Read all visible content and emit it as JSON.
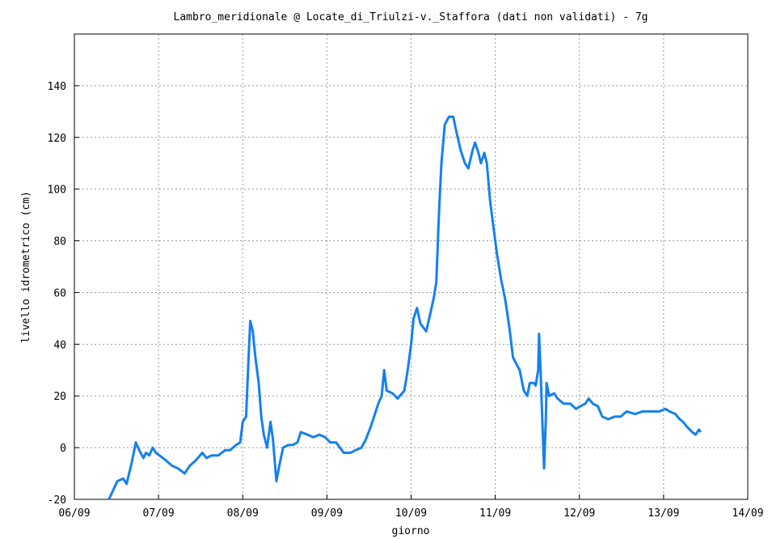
{
  "chart_data": {
    "type": "line",
    "title": "Lambro_meridionale @ Locate_di_Triulzi-v._Staffora (dati non validati) - 7g",
    "x_label": "giorno",
    "y_label": "livello idrometrico (cm)",
    "xlim": [
      0,
      8
    ],
    "xticks": [
      {
        "value": 0,
        "label": "06/09"
      },
      {
        "value": 1,
        "label": "07/09"
      },
      {
        "value": 2,
        "label": "08/09"
      },
      {
        "value": 3,
        "label": "09/09"
      },
      {
        "value": 4,
        "label": "10/09"
      },
      {
        "value": 5,
        "label": "11/09"
      },
      {
        "value": 6,
        "label": "12/09"
      },
      {
        "value": 7,
        "label": "13/09"
      },
      {
        "value": 8,
        "label": "14/09"
      }
    ],
    "ylim": [
      -20,
      160
    ],
    "yticks": [
      -20,
      0,
      20,
      40,
      60,
      80,
      100,
      120,
      140
    ],
    "grid": true,
    "series": [
      {
        "color": "#1580ee",
        "x": [
          0.41,
          0.51,
          0.58,
          0.62,
          0.68,
          0.73,
          0.77,
          0.82,
          0.85,
          0.89,
          0.93,
          0.97,
          1.01,
          1.09,
          1.16,
          1.23,
          1.31,
          1.37,
          1.44,
          1.52,
          1.57,
          1.63,
          1.71,
          1.79,
          1.85,
          1.92,
          1.97,
          2.0,
          2.04,
          2.07,
          2.09,
          2.12,
          2.15,
          2.19,
          2.22,
          2.25,
          2.29,
          2.33,
          2.36,
          2.4,
          2.44,
          2.48,
          2.54,
          2.59,
          2.65,
          2.69,
          2.77,
          2.84,
          2.91,
          2.98,
          3.04,
          3.11,
          3.2,
          3.28,
          3.34,
          3.41,
          3.46,
          3.52,
          3.56,
          3.61,
          3.65,
          3.68,
          3.71,
          3.78,
          3.84,
          3.92,
          3.96,
          4.0,
          4.03,
          4.07,
          4.11,
          4.18,
          4.23,
          4.27,
          4.3,
          4.33,
          4.36,
          4.4,
          4.45,
          4.5,
          4.54,
          4.59,
          4.64,
          4.68,
          4.73,
          4.76,
          4.8,
          4.83,
          4.87,
          4.9,
          4.94,
          4.98,
          5.02,
          5.07,
          5.12,
          5.17,
          5.21,
          5.24,
          5.29,
          5.34,
          5.38,
          5.41,
          5.46,
          5.48,
          5.51,
          5.52,
          5.54,
          5.56,
          5.58,
          5.6,
          5.61,
          5.64,
          5.7,
          5.74,
          5.81,
          5.89,
          5.96,
          6.01,
          6.07,
          6.11,
          6.16,
          6.22,
          6.27,
          6.34,
          6.42,
          6.49,
          6.56,
          6.66,
          6.75,
          6.85,
          6.95,
          7.02,
          7.07,
          7.14,
          7.19,
          7.23,
          7.28,
          7.34,
          7.38,
          7.42,
          7.44
        ],
        "values": [
          -20,
          -13,
          -12,
          -14,
          -6,
          2,
          -1,
          -4,
          -2,
          -3,
          0,
          -2,
          -3,
          -5,
          -7,
          -8,
          -10,
          -7,
          -5,
          -2,
          -4,
          -3,
          -3,
          -1,
          -1,
          1,
          2,
          10,
          12,
          35,
          49,
          45,
          35,
          25,
          12,
          5,
          0,
          10,
          3,
          -13,
          -6,
          0,
          1,
          1,
          2,
          6,
          5,
          4,
          5,
          4,
          2,
          2,
          -2,
          -2,
          -1,
          0,
          3,
          8,
          12,
          17,
          20,
          30,
          22,
          21,
          19,
          22,
          30,
          40,
          50,
          54,
          48,
          45,
          52,
          58,
          64,
          90,
          110,
          125,
          128,
          128,
          122,
          115,
          110,
          108,
          115,
          118,
          114,
          110,
          114,
          110,
          95,
          85,
          75,
          65,
          57,
          46,
          35,
          33,
          30,
          22,
          20,
          25,
          25,
          24,
          30,
          44,
          28,
          10,
          -8,
          10,
          25,
          20,
          21,
          19,
          17,
          17,
          15,
          16,
          17,
          19,
          17,
          16,
          12,
          11,
          12,
          12,
          14,
          13,
          14,
          14,
          14,
          15,
          14,
          13,
          11,
          10,
          8,
          6,
          5,
          7,
          6
        ]
      }
    ]
  }
}
